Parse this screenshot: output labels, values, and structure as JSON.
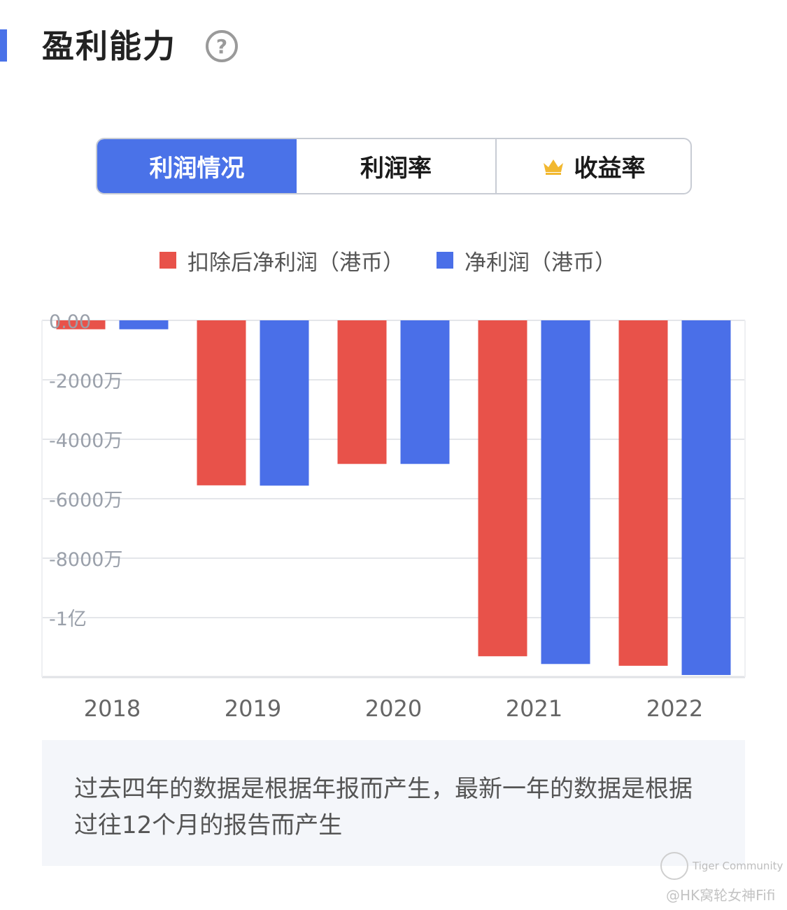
{
  "header": {
    "title": "盈利能力",
    "help_icon": "question-circle-icon",
    "help_symbol": "?"
  },
  "tabs": [
    {
      "label": "利润情况",
      "active": true
    },
    {
      "label": "利润率",
      "active": false
    },
    {
      "label": "收益率",
      "active": false,
      "icon": "crown-icon"
    }
  ],
  "colors": {
    "accent": "#4a72e8",
    "series_red": "#e8524a",
    "series_blue": "#4a6fe8"
  },
  "chart_data": {
    "type": "bar",
    "categories": [
      "2018",
      "2019",
      "2020",
      "2021",
      "2022"
    ],
    "series": [
      {
        "name": "扣除后净利润（港币）",
        "color": "#e8524a",
        "values": [
          -300,
          -5550,
          -4830,
          -11300,
          -11620
        ]
      },
      {
        "name": "净利润（港币）",
        "color": "#4a6fe8",
        "values": [
          -300,
          -5560,
          -4830,
          -11560,
          -11930
        ]
      }
    ],
    "value_unit": "万港币",
    "ylim": [
      -12000,
      0
    ],
    "y_ticks": [
      {
        "value": 0,
        "label": "0.00"
      },
      {
        "value": -2000,
        "label": "-2000万"
      },
      {
        "value": -4000,
        "label": "-4000万"
      },
      {
        "value": -6000,
        "label": "-6000万"
      },
      {
        "value": -8000,
        "label": "-8000万"
      },
      {
        "value": -10000,
        "label": "-1亿"
      }
    ],
    "grid": true,
    "legend_position": "top"
  },
  "note": "过去四年的数据是根据年报而产生，最新一年的数据是根据过往12个月的报告而产生",
  "watermark": {
    "brand": "Tiger Community",
    "user": "@HK窝轮女神Fifi"
  }
}
